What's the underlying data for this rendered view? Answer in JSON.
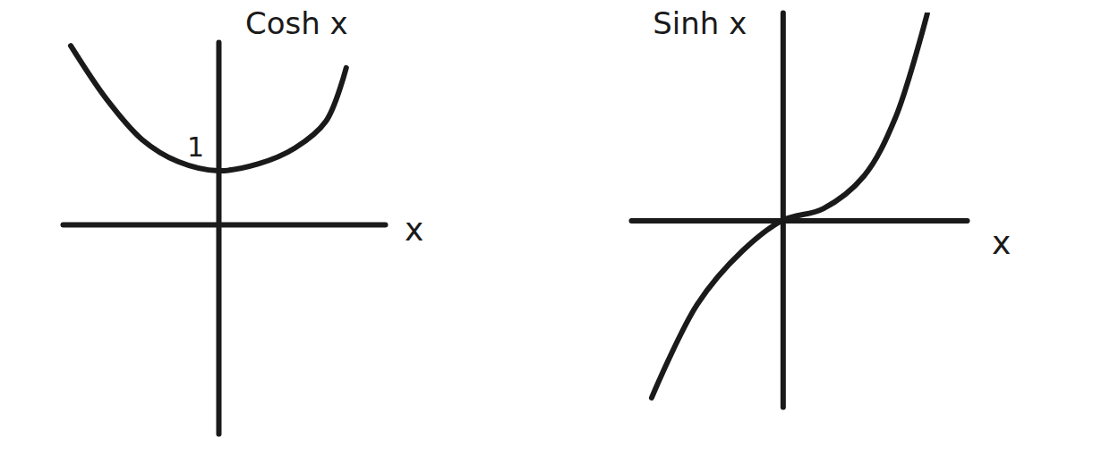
{
  "chart_data": [
    {
      "type": "line",
      "title": "Cosh x",
      "xlabel": "x",
      "x": [
        -2.75,
        -2.08,
        -1.42,
        -0.75,
        0,
        0.75,
        1.42,
        2.0,
        2.38
      ],
      "values": [
        3.33,
        2.33,
        1.58,
        1.17,
        1.0,
        1.13,
        1.42,
        1.92,
        2.92
      ],
      "xlim": [
        -2.9,
        3.1
      ],
      "ylim": [
        -3.9,
        3.4
      ],
      "xticks": [],
      "yticks": [
        1
      ],
      "tick_labels": "y",
      "color": "#1a1a1a"
    },
    {
      "type": "line",
      "title": "Sinh x",
      "xlabel": "x",
      "x": [
        -2.42,
        -1.58,
        -0.75,
        0,
        0.75,
        1.5,
        2.08,
        2.67
      ],
      "values": [
        -3.33,
        -1.58,
        -0.58,
        0,
        0.22,
        0.83,
        1.92,
        3.88
      ],
      "xlim": [
        -2.8,
        3.4
      ],
      "ylim": [
        -3.5,
        3.9
      ],
      "xticks": [],
      "yticks": [],
      "tick_labels": false,
      "color": "#1a1a1a"
    }
  ]
}
